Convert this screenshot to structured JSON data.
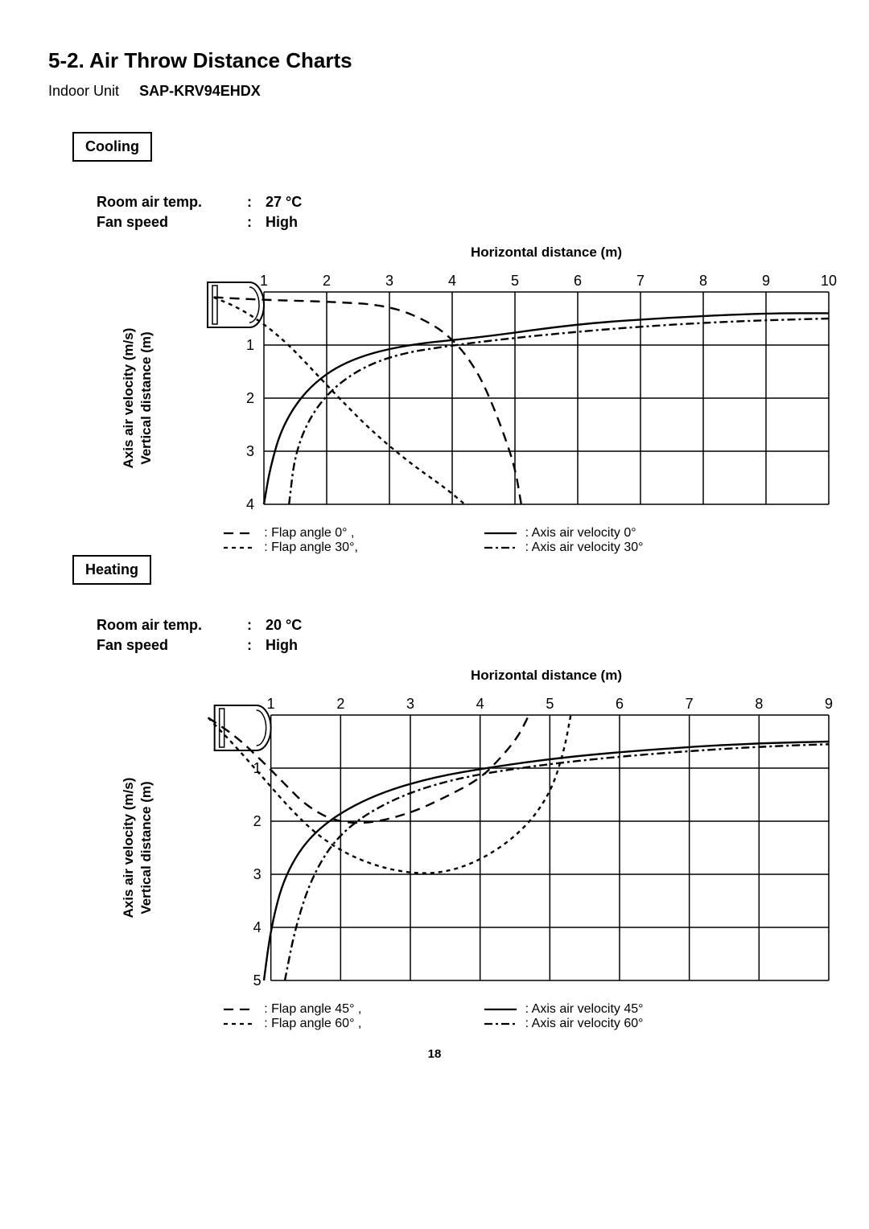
{
  "page": {
    "section_title": "5-2.  Air Throw Distance Charts",
    "indoor_unit_label": "Indoor Unit",
    "model": "SAP-KRV94EHDX",
    "page_number": "18"
  },
  "colors": {
    "stroke": "#000000",
    "bg": "#ffffff"
  },
  "charts": [
    {
      "mode_label": "Cooling",
      "conditions": {
        "room_air_temp_label": "Room air temp.",
        "room_air_temp_value": "27 °C",
        "fan_speed_label": "Fan speed",
        "fan_speed_value": "High"
      },
      "x_axis": {
        "label": "Horizontal distance (m)",
        "ticks": [
          1,
          2,
          3,
          4,
          5,
          6,
          7,
          8,
          9,
          10
        ],
        "min": 0,
        "max": 10
      },
      "y_axis": {
        "label_top": "Axis air velocity (m/s)",
        "label_bot": "Vertical distance (m)",
        "ticks": [
          1,
          2,
          3,
          4
        ],
        "min": 0,
        "max": 4
      },
      "grid": {
        "x_from": 1,
        "x_to": 10,
        "y_from": 0,
        "y_to": 4,
        "line_width": 1.5
      },
      "stroke_width": 2.4,
      "series": [
        {
          "name": "flap_0",
          "style": "longdash",
          "legend": ": Flap angle 0° ,",
          "points": [
            [
              0.2,
              0.1
            ],
            [
              1.0,
              0.15
            ],
            [
              2.0,
              0.18
            ],
            [
              3.0,
              0.25
            ],
            [
              3.7,
              0.6
            ],
            [
              4.1,
              1.0
            ],
            [
              4.4,
              1.5
            ],
            [
              4.6,
              2.0
            ],
            [
              4.8,
              2.6
            ],
            [
              5.0,
              3.3
            ],
            [
              5.1,
              4.0
            ]
          ]
        },
        {
          "name": "flap_30",
          "style": "shortdash",
          "legend": ": Flap angle 30°,",
          "points": [
            [
              0.2,
              0.1
            ],
            [
              0.6,
              0.3
            ],
            [
              1.0,
              0.6
            ],
            [
              1.4,
              1.0
            ],
            [
              1.8,
              1.5
            ],
            [
              2.2,
              2.0
            ],
            [
              2.7,
              2.6
            ],
            [
              3.3,
              3.2
            ],
            [
              3.9,
              3.7
            ],
            [
              4.2,
              4.0
            ]
          ]
        },
        {
          "name": "vel_0",
          "style": "solid",
          "legend": ": Axis air velocity 0°",
          "points": [
            [
              1.0,
              4.0
            ],
            [
              1.1,
              3.3
            ],
            [
              1.3,
              2.5
            ],
            [
              1.7,
              1.8
            ],
            [
              2.3,
              1.3
            ],
            [
              3.2,
              1.0
            ],
            [
              4.5,
              0.85
            ],
            [
              6.0,
              0.6
            ],
            [
              7.5,
              0.48
            ],
            [
              9.0,
              0.4
            ],
            [
              10.0,
              0.4
            ]
          ]
        },
        {
          "name": "vel_30",
          "style": "dashdot",
          "legend": ": Axis air velocity 30°",
          "points": [
            [
              1.4,
              4.0
            ],
            [
              1.5,
              3.0
            ],
            [
              1.8,
              2.2
            ],
            [
              2.3,
              1.6
            ],
            [
              3.0,
              1.2
            ],
            [
              4.0,
              1.0
            ],
            [
              5.5,
              0.8
            ],
            [
              7.0,
              0.65
            ],
            [
              8.5,
              0.55
            ],
            [
              10.0,
              0.5
            ]
          ]
        }
      ]
    },
    {
      "mode_label": "Heating",
      "conditions": {
        "room_air_temp_label": "Room air temp.",
        "room_air_temp_value": "20 °C",
        "fan_speed_label": "Fan speed",
        "fan_speed_value": "High"
      },
      "x_axis": {
        "label": "Horizontal distance (m)",
        "ticks": [
          1,
          2,
          3,
          4,
          5,
          6,
          7,
          8,
          9
        ],
        "min": 0,
        "max": 9
      },
      "y_axis": {
        "label_top": "Axis air velocity (m/s)",
        "label_bot": "Vertical distance (m)",
        "ticks": [
          1,
          2,
          3,
          4,
          5
        ],
        "min": 0,
        "max": 5
      },
      "grid": {
        "x_from": 1,
        "x_to": 9,
        "y_from": 0,
        "y_to": 5,
        "line_width": 1.5
      },
      "stroke_width": 2.4,
      "series": [
        {
          "name": "flap_45",
          "style": "longdash",
          "legend": ": Flap angle 45° ,",
          "points": [
            [
              0.1,
              0.05
            ],
            [
              0.5,
              0.4
            ],
            [
              0.9,
              0.9
            ],
            [
              1.2,
              1.3
            ],
            [
              1.5,
              1.7
            ],
            [
              1.9,
              2.0
            ],
            [
              2.4,
              2.05
            ],
            [
              3.0,
              1.85
            ],
            [
              3.5,
              1.55
            ],
            [
              4.0,
              1.2
            ],
            [
              4.3,
              0.8
            ],
            [
              4.55,
              0.4
            ],
            [
              4.7,
              0.0
            ]
          ]
        },
        {
          "name": "flap_60",
          "style": "shortdash",
          "legend": ": Flap angle 60° ,",
          "points": [
            [
              0.1,
              0.05
            ],
            [
              0.5,
              0.6
            ],
            [
              0.9,
              1.2
            ],
            [
              1.3,
              1.8
            ],
            [
              1.7,
              2.3
            ],
            [
              2.2,
              2.7
            ],
            [
              2.8,
              2.95
            ],
            [
              3.4,
              3.0
            ],
            [
              4.0,
              2.75
            ],
            [
              4.6,
              2.2
            ],
            [
              5.0,
              1.5
            ],
            [
              5.2,
              0.7
            ],
            [
              5.3,
              0.0
            ]
          ]
        },
        {
          "name": "vel_45",
          "style": "solid",
          "legend": ": Axis air velocity 45°",
          "points": [
            [
              0.9,
              5.0
            ],
            [
              1.0,
              4.0
            ],
            [
              1.2,
              3.0
            ],
            [
              1.6,
              2.2
            ],
            [
              2.3,
              1.6
            ],
            [
              3.2,
              1.2
            ],
            [
              4.3,
              0.95
            ],
            [
              5.5,
              0.75
            ],
            [
              7.0,
              0.6
            ],
            [
              8.0,
              0.53
            ],
            [
              9.0,
              0.5
            ]
          ]
        },
        {
          "name": "vel_60",
          "style": "dashdot",
          "legend": ": Axis air velocity 60°",
          "points": [
            [
              1.2,
              5.0
            ],
            [
              1.35,
              4.0
            ],
            [
              1.6,
              3.0
            ],
            [
              2.0,
              2.2
            ],
            [
              2.7,
              1.6
            ],
            [
              3.6,
              1.2
            ],
            [
              4.8,
              0.95
            ],
            [
              6.0,
              0.78
            ],
            [
              7.3,
              0.65
            ],
            [
              8.3,
              0.58
            ],
            [
              9.0,
              0.55
            ]
          ]
        }
      ]
    }
  ],
  "legend_styles": {
    "longdash": "12,8",
    "shortdash": "5,5",
    "solid": "",
    "dashdot": "10,4,3,4"
  }
}
